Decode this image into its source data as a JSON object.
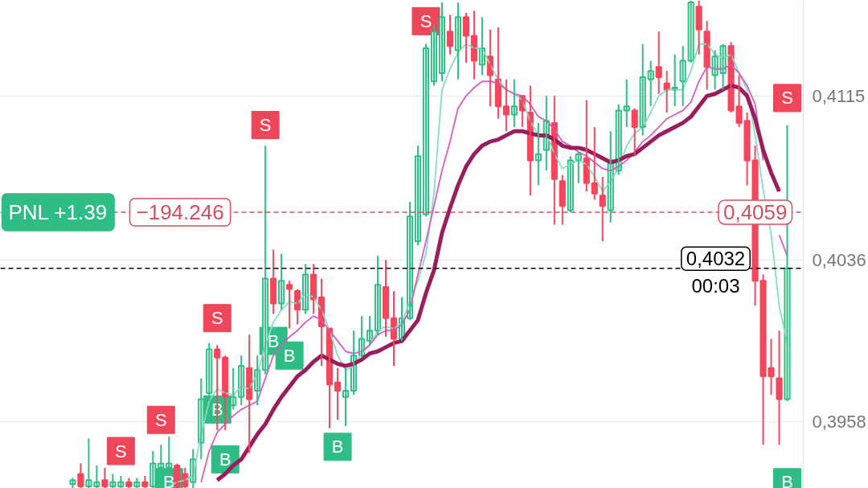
{
  "chart_data": {
    "type": "candlestick",
    "categories": [
      null,
      null,
      null,
      null,
      null,
      null,
      null,
      null,
      null,
      null,
      null,
      null,
      null,
      null,
      null,
      null,
      null,
      null,
      null,
      null,
      null,
      null,
      null,
      null,
      null,
      null,
      null,
      null,
      null,
      null,
      null,
      null,
      null,
      null,
      null,
      null,
      null,
      null,
      null,
      null,
      null,
      null,
      null,
      null,
      null,
      null,
      null,
      null,
      null,
      null,
      null,
      null,
      null,
      null,
      null,
      null,
      null,
      null,
      null,
      null,
      null,
      null,
      null,
      null,
      null,
      null,
      null,
      null,
      null,
      null,
      null,
      null,
      null,
      null,
      null,
      null,
      null,
      null,
      null,
      null,
      null,
      null,
      null,
      null,
      null,
      null,
      null,
      null,
      null,
      null
    ],
    "ohlc": [
      [
        0.3928,
        0.3931,
        0.3926,
        0.393
      ],
      [
        0.3933,
        0.3938,
        0.3926,
        0.3927
      ],
      [
        0.3927,
        0.395,
        0.3926,
        0.393
      ],
      [
        0.3927,
        0.3937,
        0.3926,
        0.3929
      ],
      [
        0.393,
        0.3936,
        0.3926,
        0.3927
      ],
      [
        0.3927,
        0.3933,
        0.3926,
        0.3929
      ],
      [
        0.3927,
        0.3932,
        0.3926,
        0.3929
      ],
      [
        0.3929,
        0.3931,
        0.3926,
        0.3927
      ],
      [
        0.3927,
        0.3931,
        0.3926,
        0.3929
      ],
      [
        0.3929,
        0.3932,
        0.3926,
        0.3927
      ],
      [
        0.3927,
        0.3944,
        0.3926,
        0.3938
      ],
      [
        0.3936,
        0.3947,
        0.3929,
        0.3938
      ],
      [
        0.3936,
        0.3951,
        0.3933,
        0.3938
      ],
      [
        0.3937,
        0.3938,
        0.3926,
        0.3927
      ],
      [
        0.3933,
        0.3936,
        0.3926,
        0.3927
      ],
      [
        0.3929,
        0.3945,
        0.3926,
        0.394
      ],
      [
        0.3948,
        0.3979,
        0.394,
        0.3969
      ],
      [
        0.3972,
        0.3996,
        0.3968,
        0.3993
      ],
      [
        0.3993,
        0.3995,
        0.3954,
        0.3989
      ],
      [
        0.3989,
        0.399,
        0.3954,
        0.397
      ],
      [
        0.3966,
        0.3984,
        0.3964,
        0.397
      ],
      [
        0.397,
        0.399,
        0.3966,
        0.3985
      ],
      [
        0.3984,
        0.4,
        0.3943,
        0.3969
      ],
      [
        0.3973,
        0.399,
        0.3966,
        0.3983
      ],
      [
        0.3983,
        0.4091,
        0.3981,
        0.4027
      ],
      [
        0.4027,
        0.4041,
        0.401,
        0.4015
      ],
      [
        0.4015,
        0.4039,
        0.4012,
        0.4026
      ],
      [
        0.4024,
        0.4026,
        0.4003,
        0.4022
      ],
      [
        0.4021,
        0.4022,
        0.4005,
        0.4012
      ],
      [
        0.4012,
        0.4034,
        0.401,
        0.4029
      ],
      [
        0.4029,
        0.4034,
        0.401,
        0.4017
      ],
      [
        0.4018,
        0.4027,
        0.3985,
        0.4004
      ],
      [
        0.4003,
        0.4003,
        0.3955,
        0.3976
      ],
      [
        0.3977,
        0.3984,
        0.3959,
        0.3973
      ],
      [
        0.397,
        0.3984,
        0.3956,
        0.3973
      ],
      [
        0.3973,
        0.4002,
        0.3971,
        0.399
      ],
      [
        0.399,
        0.4009,
        0.3989,
        0.3998
      ],
      [
        0.3997,
        0.4009,
        0.3995,
        0.4002
      ],
      [
        0.4002,
        0.4038,
        0.4,
        0.4024
      ],
      [
        0.4023,
        0.4036,
        0.3999,
        0.4008
      ],
      [
        0.4008,
        0.4021,
        0.3985,
        0.3998
      ],
      [
        0.3998,
        0.4018,
        0.3997,
        0.4008
      ],
      [
        0.4008,
        0.4064,
        0.4007,
        0.4057
      ],
      [
        0.4045,
        0.4091,
        0.4043,
        0.4086
      ],
      [
        0.4058,
        0.414,
        0.4057,
        0.4138
      ],
      [
        0.4122,
        0.4149,
        0.412,
        0.4146
      ],
      [
        0.4126,
        0.416,
        0.4122,
        0.4153
      ],
      [
        0.4146,
        0.4154,
        0.4135,
        0.4139
      ],
      [
        0.4137,
        0.416,
        0.4123,
        0.4153
      ],
      [
        0.4153,
        0.4155,
        0.4131,
        0.4144
      ],
      [
        0.4144,
        0.4156,
        0.4123,
        0.4132
      ],
      [
        0.413,
        0.4153,
        0.4125,
        0.4138
      ],
      [
        0.4134,
        0.4147,
        0.411,
        0.4125
      ],
      [
        0.4123,
        0.4148,
        0.4104,
        0.411
      ],
      [
        0.411,
        0.4123,
        0.4098,
        0.4106
      ],
      [
        0.4106,
        0.4123,
        0.41,
        0.411
      ],
      [
        0.4115,
        0.4115,
        0.41,
        0.4108
      ],
      [
        0.4107,
        0.412,
        0.4067,
        0.4084
      ],
      [
        0.4084,
        0.4102,
        0.4072,
        0.4087
      ],
      [
        0.4089,
        0.4115,
        0.4079,
        0.4103
      ],
      [
        0.4102,
        0.4115,
        0.4053,
        0.4075
      ],
      [
        0.4074,
        0.4077,
        0.4053,
        0.4062
      ],
      [
        0.406,
        0.4086,
        0.4059,
        0.4084
      ],
      [
        0.4084,
        0.4088,
        0.4073,
        0.4087
      ],
      [
        0.4085,
        0.4113,
        0.4069,
        0.4073
      ],
      [
        0.4073,
        0.41,
        0.4065,
        0.4068
      ],
      [
        0.4067,
        0.4076,
        0.4045,
        0.4062
      ],
      [
        0.406,
        0.4098,
        0.4054,
        0.4084
      ],
      [
        0.4079,
        0.4111,
        0.4077,
        0.4108
      ],
      [
        0.4108,
        0.4123,
        0.41,
        0.411
      ],
      [
        0.4108,
        0.4109,
        0.4086,
        0.41
      ],
      [
        0.41,
        0.414,
        0.4096,
        0.4124
      ],
      [
        0.4123,
        0.4132,
        0.411,
        0.4127
      ],
      [
        0.4129,
        0.4146,
        0.4116,
        0.4124
      ],
      [
        0.4121,
        0.4127,
        0.4107,
        0.4118
      ],
      [
        0.4118,
        0.4135,
        0.411,
        0.4119
      ],
      [
        0.4122,
        0.4139,
        0.411,
        0.4132
      ],
      [
        0.4132,
        0.4161,
        0.4131,
        0.416
      ],
      [
        0.4158,
        0.4161,
        0.4135,
        0.4147
      ],
      [
        0.4146,
        0.4151,
        0.4118,
        0.4129
      ],
      [
        0.4125,
        0.4137,
        0.4118,
        0.4134
      ],
      [
        0.4126,
        0.414,
        0.4118,
        0.4139
      ],
      [
        0.4139,
        0.4141,
        0.4107,
        0.4108
      ],
      [
        0.411,
        0.4125,
        0.41,
        0.4102
      ],
      [
        0.4103,
        0.4107,
        0.4072,
        0.4084
      ],
      [
        0.4084,
        0.4091,
        0.4014,
        0.4026
      ],
      [
        0.4026,
        0.4029,
        0.3947,
        0.398
      ],
      [
        0.3984,
        0.3998,
        0.3971,
        0.398
      ],
      [
        0.3979,
        0.4002,
        0.3947,
        0.3969
      ],
      [
        0.3969,
        0.4101,
        0.3968,
        0.4032
      ]
    ],
    "colors": [
      "#2ebd85",
      "#f6465d",
      "#2ebd85",
      "#2ebd85",
      "#f6465d",
      "#2ebd85",
      "#2ebd85",
      "#f6465d",
      "#2ebd85",
      "#f6465d",
      "#2ebd85",
      "#2ebd85",
      "#2ebd85",
      "#f6465d",
      "#f6465d",
      "#2ebd85",
      "#2ebd85",
      "#2ebd85",
      "#f6465d",
      "#f6465d",
      "#2ebd85",
      "#2ebd85",
      "#f6465d",
      "#2ebd85",
      "#2ebd85",
      "#f6465d",
      "#2ebd85",
      "#f6465d",
      "#f6465d",
      "#2ebd85",
      "#f6465d",
      "#f6465d",
      "#f6465d",
      "#f6465d",
      "#2ebd85",
      "#2ebd85",
      "#2ebd85",
      "#2ebd85",
      "#2ebd85",
      "#f6465d",
      "#f6465d",
      "#2ebd85",
      "#2ebd85",
      "#2ebd85",
      "#2ebd85",
      "#2ebd85",
      "#2ebd85",
      "#f6465d",
      "#2ebd85",
      "#f6465d",
      "#f6465d",
      "#2ebd85",
      "#f6465d",
      "#f6465d",
      "#f6465d",
      "#2ebd85",
      "#f6465d",
      "#f6465d",
      "#2ebd85",
      "#2ebd85",
      "#f6465d",
      "#f6465d",
      "#2ebd85",
      "#2ebd85",
      "#f6465d",
      "#f6465d",
      "#f6465d",
      "#2ebd85",
      "#2ebd85",
      "#2ebd85",
      "#f6465d",
      "#2ebd85",
      "#2ebd85",
      "#f6465d",
      "#f6465d",
      "#2ebd85",
      "#2ebd85",
      "#2ebd85",
      "#f6465d",
      "#f6465d",
      "#2ebd85",
      "#2ebd85",
      "#f6465d",
      "#f6465d",
      "#f6465d",
      "#f6465d",
      "#f6465d",
      "#f6465d",
      "#f6465d",
      "#2ebd85"
    ],
    "series": [
      {
        "type": "line",
        "color": "#86dcc4",
        "values": [
          null,
          null,
          null,
          null,
          null,
          null,
          null,
          null,
          null,
          null,
          null,
          null,
          0.3927,
          0.3929,
          0.393,
          0.3932,
          0.3952,
          0.3968,
          0.3974,
          0.3972,
          0.3971,
          0.3975,
          0.3974,
          0.3981,
          0.3995,
          0.4006,
          0.4012,
          0.4016,
          0.4015,
          0.402,
          0.4018,
          0.4012,
          0.4002,
          0.399,
          0.3983,
          0.3985,
          0.3991,
          0.3995,
          0.4002,
          0.4004,
          0.4003,
          0.4006,
          0.4016,
          0.4026,
          0.4039,
          0.4068,
          0.4118,
          0.4128,
          0.4136,
          0.414,
          0.4138,
          0.4138,
          0.413,
          0.4123,
          0.4118,
          0.4116,
          0.4113,
          0.4103,
          0.4096,
          0.4097,
          0.4087,
          0.408,
          0.4082,
          0.4084,
          0.4082,
          0.4076,
          0.4069,
          0.4074,
          0.408,
          0.4091,
          0.4097,
          0.41,
          0.4107,
          0.4115,
          0.4118,
          0.4118,
          0.4118,
          0.4127,
          0.414,
          0.414,
          0.4135,
          0.4133,
          0.4135,
          0.4126,
          0.4118,
          0.4096,
          0.407,
          0.4048,
          0.4014,
          0.3996
        ]
      },
      {
        "type": "line",
        "color": "#d65cbf",
        "values": [
          null,
          null,
          null,
          null,
          null,
          null,
          null,
          null,
          null,
          null,
          null,
          null,
          null,
          null,
          null,
          null,
          0.3929,
          0.3944,
          0.3953,
          0.3957,
          0.3961,
          0.3964,
          0.3966,
          0.3968,
          0.3979,
          0.399,
          0.3995,
          0.3999,
          0.4002,
          0.4006,
          0.4009,
          0.4007,
          0.4002,
          0.3997,
          0.3992,
          0.3991,
          0.3992,
          0.3995,
          0.4,
          0.4002,
          0.4002,
          0.4005,
          0.4012,
          0.4029,
          0.4045,
          0.4062,
          0.4079,
          0.4093,
          0.4109,
          0.4115,
          0.4119,
          0.4122,
          0.4122,
          0.4121,
          0.4118,
          0.4116,
          0.4115,
          0.4111,
          0.4105,
          0.4103,
          0.4099,
          0.4093,
          0.4091,
          0.4088,
          0.4086,
          0.4083,
          0.408,
          0.4079,
          0.4081,
          0.4084,
          0.4088,
          0.4093,
          0.4096,
          0.41,
          0.4104,
          0.4106,
          0.4108,
          0.4112,
          0.4122,
          0.4129,
          0.4128,
          0.4128,
          0.413,
          0.4126,
          0.412,
          0.4111,
          0.4084,
          null,
          0.4048,
          0.4038
        ]
      },
      {
        "type": "line",
        "color": "#9b1d5c",
        "values": [
          null,
          null,
          null,
          null,
          null,
          null,
          null,
          null,
          null,
          null,
          null,
          null,
          null,
          null,
          null,
          null,
          null,
          null,
          0.393,
          0.3933,
          0.3937,
          0.394,
          0.3946,
          0.3952,
          0.3957,
          0.3964,
          0.397,
          0.3975,
          0.398,
          0.3983,
          0.3987,
          0.399,
          0.3988,
          0.3986,
          0.3985,
          0.3986,
          0.3988,
          0.3991,
          0.3992,
          0.3994,
          0.3996,
          0.3997,
          0.4002,
          0.4007,
          0.402,
          0.4031,
          0.4049,
          0.4061,
          0.4072,
          0.4081,
          0.4087,
          0.4091,
          0.4093,
          0.4094,
          0.4096,
          0.4098,
          0.4098,
          0.4097,
          0.4096,
          0.4096,
          0.4094,
          0.4091,
          0.409,
          0.409,
          0.4089,
          0.4087,
          0.4085,
          0.4083,
          0.4084,
          0.4086,
          0.4087,
          0.409,
          0.4093,
          0.4096,
          0.4098,
          0.41,
          0.4102,
          0.4105,
          0.411,
          0.4115,
          0.4116,
          0.4118,
          0.412,
          0.4119,
          0.4115,
          0.4104,
          0.4089,
          0.4078,
          0.4069,
          null
        ]
      },
      {
        "type": "scatter",
        "color": "#f0465a",
        "marker": "square",
        "values": [
          null,
          null,
          null,
          null,
          null,
          null,
          0.3944,
          null,
          null,
          null,
          null,
          0.3959,
          null,
          null,
          null,
          null,
          null,
          null,
          0.4008,
          null,
          null,
          null,
          null,
          null,
          0.4101,
          null,
          null,
          null,
          null,
          null,
          null,
          null,
          null,
          null,
          null,
          null,
          null,
          null,
          null,
          null,
          null,
          null,
          null,
          null,
          0.4151,
          null,
          null,
          null,
          null,
          null,
          null,
          null,
          null,
          null,
          null,
          null,
          null,
          null,
          null,
          null,
          null,
          null,
          null,
          null,
          null,
          null,
          null,
          null,
          null,
          null,
          null,
          null,
          null,
          null,
          null,
          null,
          null,
          null,
          null,
          null,
          null,
          null,
          null,
          null,
          null,
          null,
          null,
          null,
          null,
          0.4114
        ],
        "value_labels": [
          null,
          null,
          null,
          null,
          null,
          null,
          "S",
          null,
          null,
          null,
          null,
          "S",
          null,
          null,
          null,
          null,
          null,
          null,
          "S",
          null,
          null,
          null,
          null,
          null,
          "S",
          null,
          null,
          null,
          null,
          null,
          null,
          null,
          null,
          null,
          null,
          null,
          null,
          null,
          null,
          null,
          null,
          null,
          null,
          null,
          "S",
          null,
          null,
          null,
          null,
          null,
          null,
          null,
          null,
          null,
          null,
          null,
          null,
          null,
          null,
          null,
          null,
          null,
          null,
          null,
          null,
          null,
          null,
          null,
          null,
          null,
          null,
          null,
          null,
          null,
          null,
          null,
          null,
          null,
          null,
          null,
          null,
          null,
          null,
          null,
          null,
          null,
          null,
          null,
          null,
          "S"
        ]
      },
      {
        "type": "scatter",
        "color": "#2ebd85",
        "marker": "square",
        "values": [
          null,
          null,
          null,
          null,
          null,
          null,
          null,
          null,
          null,
          null,
          null,
          null,
          0.3929,
          null,
          null,
          null,
          null,
          null,
          0.3964,
          0.394,
          null,
          null,
          null,
          null,
          null,
          0.3997,
          null,
          0.399,
          null,
          null,
          null,
          null,
          null,
          0.3946,
          null,
          null,
          null,
          null,
          null,
          null,
          null,
          null,
          null,
          null,
          null,
          null,
          null,
          null,
          null,
          null,
          null,
          null,
          null,
          null,
          null,
          null,
          null,
          null,
          null,
          null,
          null,
          null,
          null,
          null,
          null,
          null,
          null,
          null,
          null,
          null,
          null,
          null,
          null,
          null,
          null,
          null,
          null,
          null,
          null,
          null,
          null,
          null,
          null,
          null,
          null,
          null,
          null,
          null,
          null,
          0.3929
        ],
        "value_labels": [
          null,
          null,
          null,
          null,
          null,
          null,
          null,
          null,
          null,
          null,
          null,
          null,
          "B",
          null,
          null,
          null,
          null,
          null,
          "B",
          "B",
          null,
          null,
          null,
          null,
          null,
          "B",
          null,
          "B",
          null,
          null,
          null,
          null,
          null,
          "B",
          null,
          null,
          null,
          null,
          null,
          null,
          null,
          null,
          null,
          null,
          null,
          null,
          null,
          null,
          null,
          null,
          null,
          null,
          null,
          null,
          null,
          null,
          null,
          null,
          null,
          null,
          null,
          null,
          null,
          null,
          null,
          null,
          null,
          null,
          null,
          null,
          null,
          null,
          null,
          null,
          null,
          null,
          null,
          null,
          null,
          null,
          null,
          null,
          null,
          null,
          null,
          null,
          null,
          null,
          null,
          "B"
        ]
      }
    ],
    "ylim": [
      0.3926,
      0.4161
    ],
    "yticks": [
      {
        "value": 0.4115,
        "label": "0,4115"
      },
      {
        "value": 0.4036,
        "label": "0,4036"
      },
      {
        "value": 0.3958,
        "label": "0,3958"
      }
    ],
    "grid": "y",
    "tick_labels": "y",
    "ref_lines": [
      {
        "axis": "y",
        "value": 0.4059,
        "label": "0,4059",
        "color": "#d2505f",
        "line_style": "dashed"
      },
      {
        "axis": "y",
        "value": 0.4032,
        "label": "0,4032",
        "color": "#000000",
        "line_style": "dashed"
      }
    ],
    "annotations": [
      {
        "text": "PNL +1.39",
        "y": 0.4059
      },
      {
        "text": "−194.246",
        "y": 0.4059
      },
      {
        "text": "00:03",
        "y": 0.4032
      }
    ]
  }
}
